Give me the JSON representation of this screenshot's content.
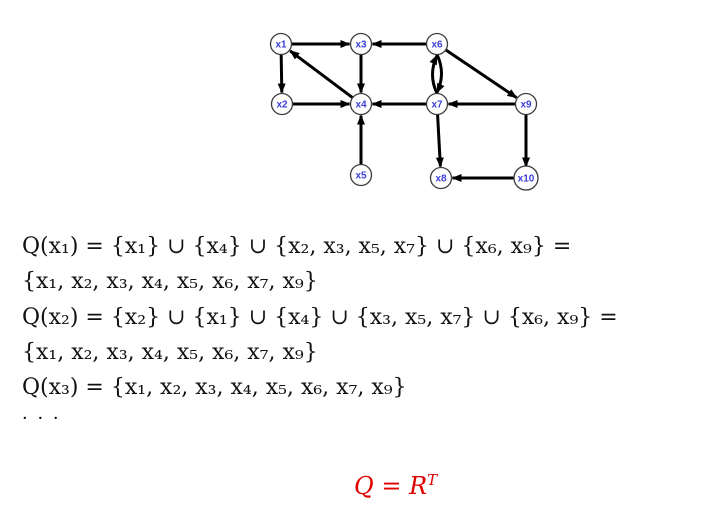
{
  "graph": {
    "node_label_color": "#3b3fd8",
    "edge_color": "#000000",
    "nodes": [
      "x1",
      "x2",
      "x3",
      "x4",
      "x5",
      "x6",
      "x7",
      "x8",
      "x9",
      "x10"
    ],
    "edges": [
      [
        "x1",
        "x3"
      ],
      [
        "x1",
        "x2"
      ],
      [
        "x2",
        "x4"
      ],
      [
        "x4",
        "x1"
      ],
      [
        "x3",
        "x4"
      ],
      [
        "x6",
        "x3"
      ],
      [
        "x6",
        "x7"
      ],
      [
        "x7",
        "x6"
      ],
      [
        "x6",
        "x9"
      ],
      [
        "x7",
        "x4"
      ],
      [
        "x9",
        "x7"
      ],
      [
        "x7",
        "x8"
      ],
      [
        "x9",
        "x10"
      ],
      [
        "x10",
        "x8"
      ],
      [
        "x5",
        "x4"
      ]
    ]
  },
  "equations": {
    "line1": "Q(x₁) = {x₁} ∪ {x₄} ∪ {x₂, x₃, x₅, x₇} ∪ {x₆, x₉} =",
    "line2": "{x₁, x₂, x₃, x₄, x₅, x₆, x₇, x₉}",
    "line3": "Q(x₂) = {x₂} ∪ {x₁} ∪ {x₄} ∪ {x₃, x₅, x₇} ∪ {x₆, x₉} =",
    "line4": "{x₁, x₂, x₃, x₄, x₅, x₆, x₇, x₉}",
    "line5": "Q(x₃) = {x₁, x₂, x₃, x₄, x₅, x₆, x₇, x₉}",
    "ellipsis": "· · ·"
  },
  "formula": {
    "lhs": "Q",
    "eq": " = ",
    "rhs": "R",
    "sup": "T",
    "color": "#e00000"
  }
}
